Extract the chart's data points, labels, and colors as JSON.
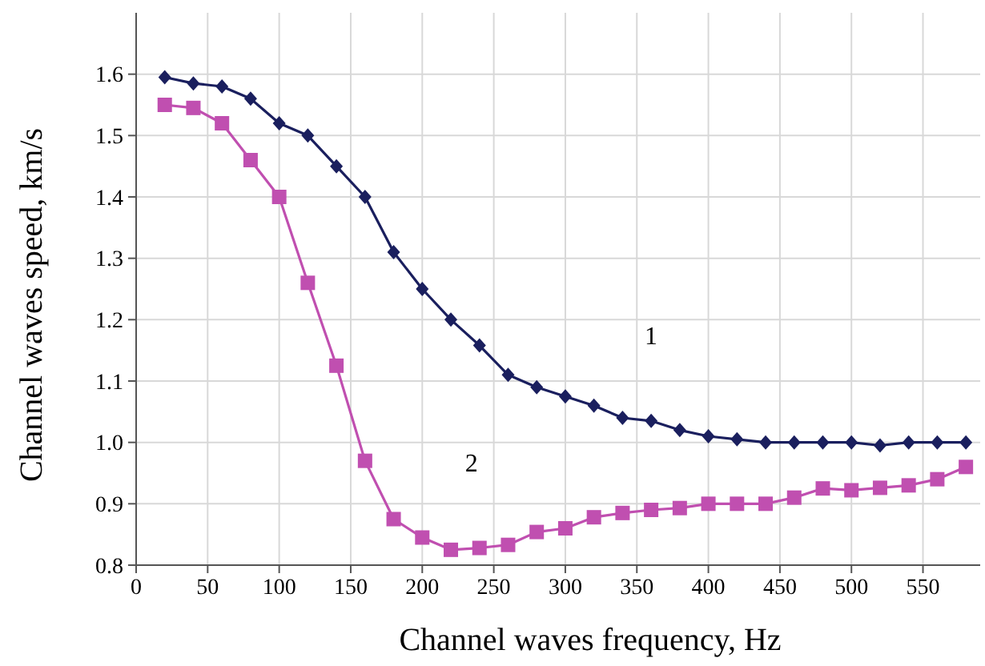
{
  "chart_data": {
    "type": "line",
    "xlabel": "Channel waves frequency, Hz",
    "ylabel": "Channel waves speed, km/s",
    "x": [
      20,
      40,
      60,
      80,
      100,
      120,
      140,
      160,
      180,
      200,
      220,
      240,
      260,
      280,
      300,
      320,
      340,
      360,
      380,
      400,
      420,
      440,
      460,
      480,
      500,
      520,
      540,
      560,
      580
    ],
    "series": [
      {
        "name": "1",
        "color": "#1a1f5e",
        "marker": "diamond",
        "values": [
          1.595,
          1.585,
          1.58,
          1.56,
          1.52,
          1.5,
          1.45,
          1.4,
          1.31,
          1.25,
          1.2,
          1.158,
          1.11,
          1.09,
          1.075,
          1.06,
          1.04,
          1.035,
          1.02,
          1.01,
          1.005,
          1.0,
          1.0,
          1.0,
          1.0,
          0.995,
          1.0,
          1.0,
          1.0
        ]
      },
      {
        "name": "2",
        "color": "#c04fb0",
        "marker": "square",
        "values": [
          1.55,
          1.545,
          1.52,
          1.46,
          1.4,
          1.26,
          1.125,
          0.97,
          0.875,
          0.845,
          0.825,
          0.828,
          0.833,
          0.854,
          0.86,
          0.878,
          0.885,
          0.89,
          0.893,
          0.9,
          0.9,
          0.9,
          0.91,
          0.925,
          0.922,
          0.926,
          0.93,
          0.94,
          0.96
        ]
      }
    ],
    "xlim": [
      0,
      590
    ],
    "ylim": [
      0.8,
      1.7
    ],
    "xticks": [
      0,
      50,
      100,
      150,
      200,
      250,
      300,
      350,
      400,
      450,
      500,
      550
    ],
    "yticks": [
      0.8,
      {
        "value": 0.9,
        "label": "0.9"
      },
      {
        "value": 1.0,
        "label": "1.0"
      },
      1.1,
      1.2,
      1.3,
      1.4,
      1.5,
      1.6
    ],
    "grid": true
  }
}
